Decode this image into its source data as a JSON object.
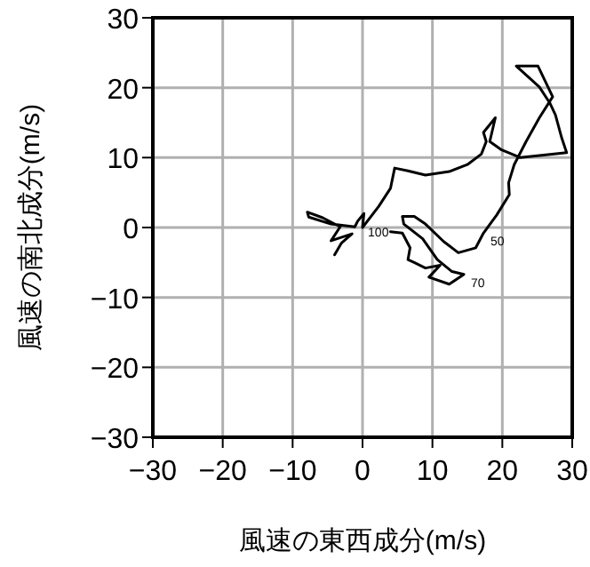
{
  "chart_data": {
    "type": "line",
    "xlabel": "風速の東西成分(m/s)",
    "ylabel": "風速の南北成分(m/s)",
    "xlim": [
      -30,
      30
    ],
    "ylim": [
      -30,
      30
    ],
    "xticks": [
      -30,
      -20,
      -10,
      0,
      10,
      20,
      30
    ],
    "yticks": [
      -30,
      -20,
      -10,
      0,
      10,
      20,
      30
    ],
    "grid": true,
    "series": [
      {
        "color": "#000000",
        "x": [
          -4,
          -3,
          -1.5,
          -4.5,
          -3.2,
          -5.7,
          -7.9,
          -7.7,
          -4.5,
          -1.1,
          -0.7,
          0.2,
          0,
          2.3,
          4,
          4.6,
          6.5,
          9,
          12.4,
          15,
          17,
          17.7,
          17.3,
          19,
          18.2,
          19.9,
          22.6,
          29.2,
          28.5,
          27.6,
          26.8,
          25.3,
          22,
          25.1,
          27.2,
          25.3,
          23.4,
          21.7,
          20.9,
          21,
          19.2,
          17.3,
          16.2,
          13.7,
          11.6,
          9,
          7.4,
          5.7,
          5.9,
          8.6,
          10.7,
          12.8,
          14.5,
          12.4,
          9.5,
          11.1,
          9,
          7.4,
          6.5,
          6.8,
          5.7,
          4
        ],
        "values": [
          -3.9,
          -2.2,
          -0.9,
          -1.9,
          0.1,
          1.4,
          2.2,
          1.5,
          0.5,
          0.1,
          0.9,
          2,
          0,
          3,
          5.6,
          8.5,
          8.1,
          7.5,
          8,
          9,
          10.5,
          12.3,
          13.6,
          15.7,
          12.3,
          11.1,
          10,
          10.7,
          12.8,
          16.1,
          17.8,
          20.1,
          23.1,
          23.1,
          18.7,
          15.7,
          12.3,
          9,
          6.4,
          4.7,
          1.8,
          -0.8,
          -2.9,
          -3.6,
          -2,
          0.5,
          1.6,
          1.6,
          0.5,
          -1.6,
          -4.6,
          -6.3,
          -6.7,
          -8.1,
          -7.1,
          -5.4,
          -5.8,
          -5,
          -4.6,
          -2.9,
          -0.8,
          -0.6
        ]
      }
    ],
    "annotations": [
      {
        "text": "100",
        "x": 4,
        "y": -0.6
      },
      {
        "text": "50",
        "x": 17.3,
        "y": -0.8
      },
      {
        "text": "70",
        "x": 14.5,
        "y": -6.7
      }
    ]
  }
}
